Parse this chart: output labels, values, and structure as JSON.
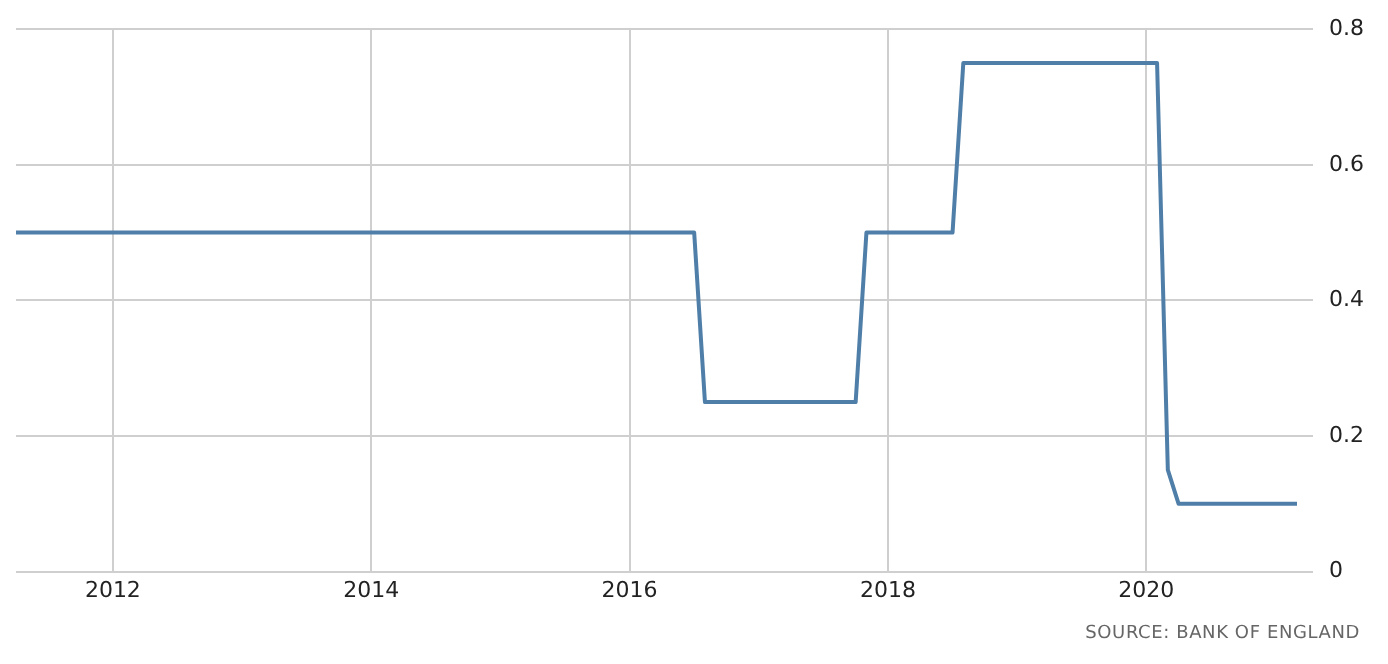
{
  "chart_data": {
    "type": "line",
    "annotations": [
      "SOURCE: BANK OF ENGLAND"
    ],
    "x": [
      "2011-04",
      "2016-07",
      "2016-08",
      "2017-10",
      "2017-11",
      "2018-07",
      "2018-08",
      "2020-02",
      "2020-03",
      "2020-04",
      "2021-03"
    ],
    "series": [
      {
        "color": "#4f7fa8",
        "values": [
          0.5,
          0.5,
          0.25,
          0.25,
          0.5,
          0.5,
          0.75,
          0.75,
          0.15,
          0.1,
          0.1
        ]
      }
    ],
    "xlim": [
      "2011-04",
      "2021-03"
    ],
    "xticks": [
      "2012",
      "2014",
      "2016",
      "2018",
      "2020"
    ],
    "ylim": [
      0,
      0.8
    ],
    "yticks": [
      0,
      0.2,
      0.4,
      0.6,
      0.8
    ],
    "grid": true,
    "legend": false,
    "marker": "none",
    "line_style": "solid"
  }
}
